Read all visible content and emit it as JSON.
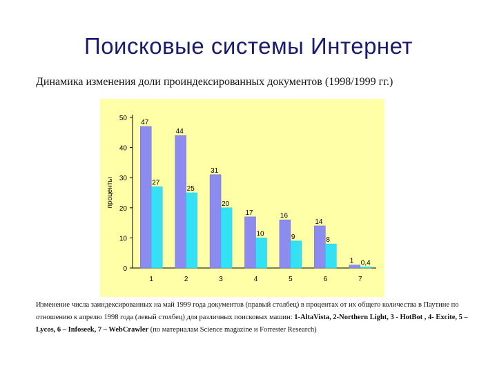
{
  "title": "Поисковые системы Интернет",
  "subtitle": "Динамика изменения доли проиндексированных документов (1998/1999 гг.)",
  "caption": {
    "intro": "Изменение числа заиндексированных на май 1999 года документов (правый столбец) в процентах от их общего количества в Паутине по отношению к апрелю 1998 года (левый столбец) для различных поисковых машин: ",
    "engines": "1-AltaVista, 2-Northern Light, 3 - HotBot , 4- Excite, 5 – Lycos, 6 – Infoseek, 7 – WebCrawler",
    "source": " (по материалам Science magazine и Forrester Research)"
  },
  "colors": {
    "left_bar": "#8c8cf0",
    "right_bar": "#33e0f4",
    "chart_bg": "#ffffa8",
    "title": "#1a1a6e"
  },
  "chart_data": {
    "type": "bar",
    "categories": [
      "1",
      "2",
      "3",
      "4",
      "5",
      "6",
      "7"
    ],
    "series": [
      {
        "values": [
          47,
          44,
          31,
          17,
          16,
          14,
          1
        ],
        "labels": [
          "47",
          "44",
          "31",
          "17",
          "16",
          "14",
          "1"
        ]
      },
      {
        "values": [
          27,
          25,
          20,
          10,
          9,
          8,
          0.4
        ],
        "labels": [
          "27",
          "25",
          "20",
          "10",
          "9",
          "8",
          "0,4"
        ]
      }
    ],
    "ylabel": "проценты",
    "ylim": [
      0,
      50
    ],
    "yticks": [
      "0",
      "10",
      "20",
      "30",
      "40",
      "50"
    ],
    "grid": false,
    "legend": "none"
  }
}
